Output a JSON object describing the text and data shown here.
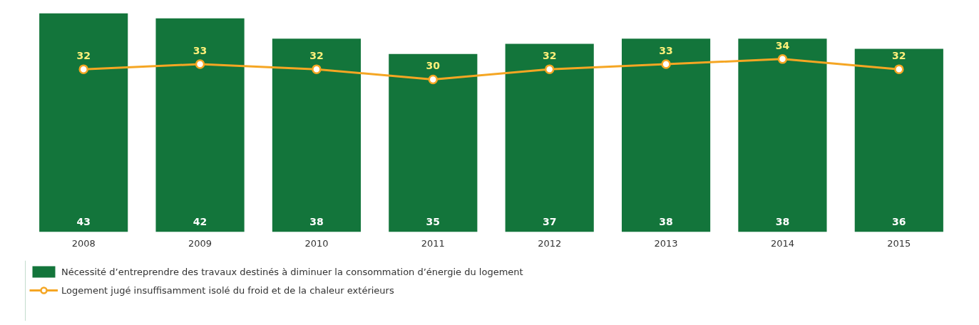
{
  "chart_data": {
    "type": "bar",
    "categories": [
      "2008",
      "2009",
      "2010",
      "2011",
      "2012",
      "2013",
      "2014",
      "2015"
    ],
    "series": [
      {
        "name": "Nécessité d’entreprendre des travaux destinés à diminuer la consommation d’énergie du logement",
        "color": "#13753b",
        "values": [
          43,
          42,
          38,
          35,
          37,
          38,
          38,
          36
        ]
      },
      {
        "name": "Logement jugé insuffisamment isolé du froid et de la chaleur extérieurs",
        "type": "line",
        "color": "#f5a623",
        "values": [
          32,
          33,
          32,
          30,
          32,
          33,
          34,
          32
        ]
      }
    ],
    "data_labels": true,
    "grid": false,
    "legend": "bottom left",
    "marker": "circle",
    "line_style": "solid",
    "tick_labels": "x"
  }
}
